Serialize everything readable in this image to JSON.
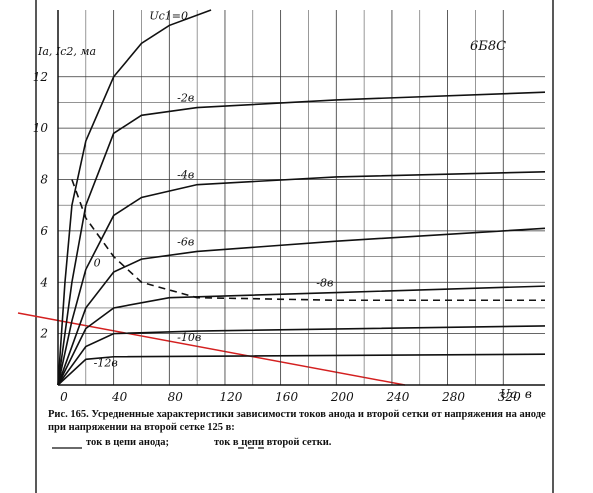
{
  "chart_data": {
    "type": "line",
    "tube": "6Б8С",
    "y_label": "Ia, Ic2, ма",
    "x_label": "Uа, в",
    "caption": "Рис. 165. Усредненные характеристики зависимости токов анода и второй сетки от напряжения на аноде при напряжении на второй сетке 125 в:",
    "legend_anode": "ток в цепи анода;",
    "legend_screen": "ток в цепи второй сетки.",
    "xlim": [
      0,
      350
    ],
    "ylim": [
      0,
      14.6
    ],
    "xticks": [
      0,
      40,
      80,
      120,
      160,
      200,
      240,
      280,
      320
    ],
    "yticks": [
      2,
      4,
      6,
      8,
      10,
      12
    ],
    "grid": true,
    "series": [
      {
        "name": "Uc1=0",
        "color": "#111111",
        "dash": false,
        "x": [
          0,
          5,
          10,
          20,
          40,
          60,
          80,
          110
        ],
        "values": [
          0,
          4,
          7,
          9.5,
          12,
          13.3,
          14,
          14.6
        ]
      },
      {
        "name": "-2в",
        "color": "#111111",
        "dash": false,
        "x": [
          0,
          10,
          20,
          40,
          60,
          100,
          200,
          350
        ],
        "values": [
          0,
          4,
          7,
          9.8,
          10.5,
          10.8,
          11.1,
          11.4
        ]
      },
      {
        "name": "-4в",
        "color": "#111111",
        "dash": false,
        "x": [
          0,
          10,
          20,
          40,
          60,
          100,
          200,
          350
        ],
        "values": [
          0,
          2.5,
          4.5,
          6.6,
          7.3,
          7.8,
          8.1,
          8.3
        ]
      },
      {
        "name": "-6в",
        "color": "#111111",
        "dash": false,
        "x": [
          0,
          20,
          40,
          60,
          100,
          200,
          350
        ],
        "values": [
          0,
          3,
          4.4,
          4.9,
          5.2,
          5.6,
          6.1
        ]
      },
      {
        "name": "-8в",
        "color": "#111111",
        "dash": false,
        "x": [
          0,
          20,
          40,
          80,
          200,
          350
        ],
        "values": [
          0,
          2.2,
          3,
          3.4,
          3.6,
          3.85
        ]
      },
      {
        "name": "-10в",
        "color": "#111111",
        "dash": false,
        "x": [
          0,
          20,
          40,
          100,
          350
        ],
        "values": [
          0,
          1.5,
          2,
          2.1,
          2.3
        ]
      },
      {
        "name": "-12в",
        "color": "#111111",
        "dash": false,
        "x": [
          0,
          20,
          40,
          350
        ],
        "values": [
          0,
          1,
          1.1,
          1.2
        ]
      },
      {
        "name": "0",
        "color": "#111111",
        "dash": true,
        "x": [
          10,
          20,
          40,
          60,
          100,
          200,
          350
        ],
        "values": [
          8,
          6.5,
          5,
          4,
          3.4,
          3.3,
          3.3
        ]
      }
    ]
  }
}
